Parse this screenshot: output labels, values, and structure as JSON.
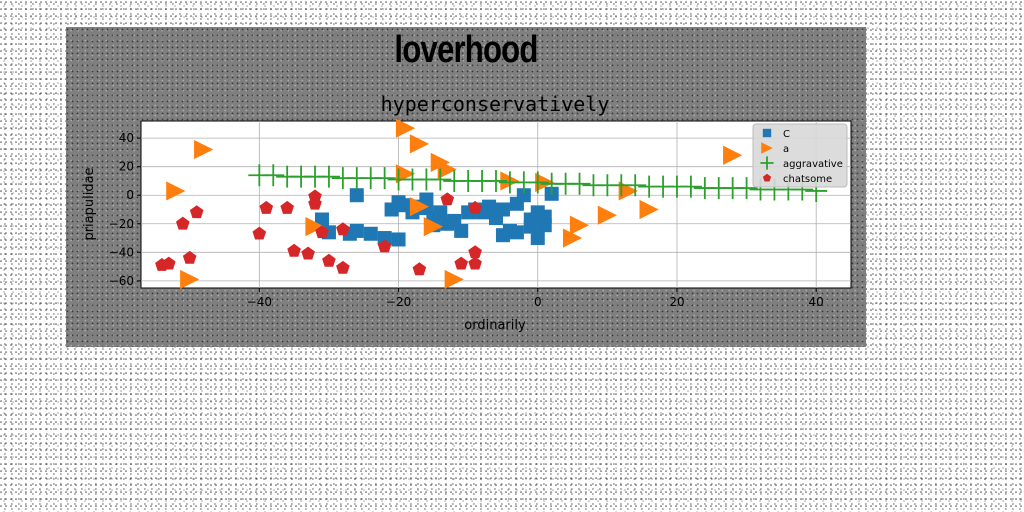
{
  "figure": {
    "suptitle": "loverhood"
  },
  "chart_data": {
    "type": "scatter",
    "title": "hyperconservatively",
    "xlabel": "ordinarily",
    "ylabel": "priapulidae",
    "xlim": [
      -57,
      45
    ],
    "ylim": [
      -65,
      52
    ],
    "xticks": [
      -40,
      -20,
      0,
      20,
      40
    ],
    "yticks": [
      -60,
      -40,
      -20,
      0,
      20,
      40
    ],
    "grid": true,
    "legend_position": "top-right",
    "series": [
      {
        "name": "C",
        "marker": "square",
        "color": "#1f77b4",
        "points": [
          [
            -26,
            0
          ],
          [
            -31,
            -17
          ],
          [
            -30,
            -26
          ],
          [
            -27,
            -27
          ],
          [
            -26,
            -25
          ],
          [
            -24,
            -27
          ],
          [
            -22,
            -30
          ],
          [
            -21,
            -10
          ],
          [
            -20,
            -5
          ],
          [
            -20,
            -31
          ],
          [
            -19,
            -7
          ],
          [
            -18,
            -12
          ],
          [
            -16,
            -3
          ],
          [
            -16,
            -9
          ],
          [
            -15,
            -16
          ],
          [
            -15,
            -21
          ],
          [
            -14,
            -12
          ],
          [
            -13,
            -20
          ],
          [
            -12,
            -18
          ],
          [
            -11,
            -25
          ],
          [
            -10,
            -12
          ],
          [
            -9,
            -10
          ],
          [
            -8,
            -12
          ],
          [
            -7,
            -8
          ],
          [
            -6,
            -16
          ],
          [
            -5,
            -10
          ],
          [
            -5,
            -28
          ],
          [
            -4,
            -25
          ],
          [
            -3,
            -26
          ],
          [
            -3,
            -6
          ],
          [
            -2,
            0
          ],
          [
            -1,
            -22
          ],
          [
            -1,
            -17
          ],
          [
            0,
            -12
          ],
          [
            0,
            -30
          ],
          [
            1,
            -15
          ],
          [
            1,
            -21
          ],
          [
            2,
            1
          ],
          [
            -17,
            -8
          ]
        ]
      },
      {
        "name": "a",
        "marker": "triangle-right",
        "color": "#ff7f0e",
        "points": [
          [
            -52,
            3
          ],
          [
            -48,
            32
          ],
          [
            -50,
            -59
          ],
          [
            -19,
            47
          ],
          [
            -17,
            36
          ],
          [
            -14,
            23
          ],
          [
            -13,
            18
          ],
          [
            -19,
            15
          ],
          [
            -17,
            -8
          ],
          [
            -15,
            -22
          ],
          [
            -32,
            -22
          ],
          [
            -12,
            -59
          ],
          [
            -4,
            10
          ],
          [
            1,
            9
          ],
          [
            5,
            -30
          ],
          [
            6,
            -21
          ],
          [
            10,
            -14
          ],
          [
            13,
            3
          ],
          [
            16,
            -10
          ],
          [
            28,
            28
          ]
        ]
      },
      {
        "name": "aggravative",
        "marker": "plus",
        "color": "#2ca02c",
        "points": [
          [
            -40,
            14
          ],
          [
            -38,
            14
          ],
          [
            -36,
            13
          ],
          [
            -34,
            13
          ],
          [
            -32,
            13
          ],
          [
            -30,
            13
          ],
          [
            -28,
            12
          ],
          [
            -26,
            12
          ],
          [
            -24,
            12
          ],
          [
            -22,
            12
          ],
          [
            -20,
            11
          ],
          [
            -18,
            11
          ],
          [
            -16,
            11
          ],
          [
            -14,
            11
          ],
          [
            -12,
            10
          ],
          [
            -10,
            10
          ],
          [
            -8,
            10
          ],
          [
            -6,
            10
          ],
          [
            -4,
            9
          ],
          [
            -2,
            9
          ],
          [
            0,
            9
          ],
          [
            2,
            8
          ],
          [
            4,
            8
          ],
          [
            6,
            8
          ],
          [
            8,
            7
          ],
          [
            10,
            7
          ],
          [
            12,
            7
          ],
          [
            14,
            7
          ],
          [
            16,
            6
          ],
          [
            18,
            6
          ],
          [
            20,
            6
          ],
          [
            22,
            6
          ],
          [
            24,
            5
          ],
          [
            26,
            5
          ],
          [
            28,
            5
          ],
          [
            30,
            5
          ],
          [
            32,
            4
          ],
          [
            34,
            4
          ],
          [
            36,
            4
          ],
          [
            38,
            4
          ],
          [
            40,
            3
          ]
        ]
      },
      {
        "name": "chatsome",
        "marker": "pentagon",
        "color": "#d62728",
        "points": [
          [
            -54,
            -49
          ],
          [
            -53,
            -48
          ],
          [
            -51,
            -20
          ],
          [
            -50,
            -44
          ],
          [
            -49,
            -12
          ],
          [
            -40,
            -27
          ],
          [
            -39,
            -9
          ],
          [
            -36,
            -9
          ],
          [
            -35,
            -39
          ],
          [
            -33,
            -41
          ],
          [
            -32,
            -1
          ],
          [
            -32,
            -6
          ],
          [
            -31,
            -26
          ],
          [
            -30,
            -46
          ],
          [
            -28,
            -24
          ],
          [
            -28,
            -51
          ],
          [
            -22,
            -36
          ],
          [
            -17,
            -52
          ],
          [
            -13,
            -3
          ],
          [
            -11,
            -48
          ],
          [
            -9,
            -48
          ],
          [
            -9,
            -40
          ],
          [
            -9,
            -9
          ]
        ]
      }
    ]
  }
}
